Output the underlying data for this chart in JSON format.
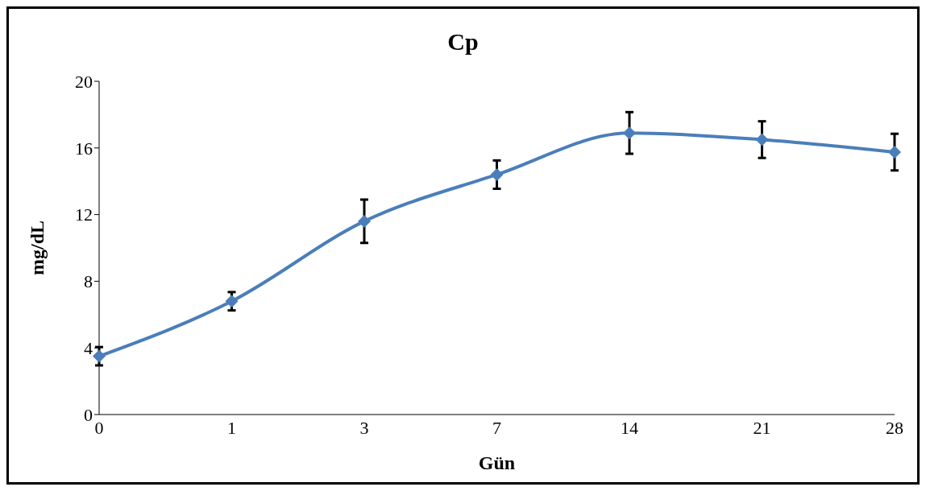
{
  "chart_data": {
    "type": "line",
    "title": "Cp",
    "xlabel": "Gün",
    "ylabel": "mg/dL",
    "categories": [
      "0",
      "1",
      "3",
      "7",
      "14",
      "21",
      "28"
    ],
    "series": [
      {
        "color": "#4a7ebb",
        "values": [
          3.5,
          6.8,
          11.6,
          14.4,
          16.9,
          16.5,
          15.75
        ],
        "errors": [
          0.55,
          0.55,
          1.3,
          0.85,
          1.25,
          1.1,
          1.1
        ]
      }
    ],
    "ylim": [
      0,
      20
    ],
    "yticks": [
      0,
      4,
      8,
      12,
      16,
      20
    ],
    "grid": false,
    "legend": false,
    "marker": "diamond",
    "line_style": "solid"
  }
}
